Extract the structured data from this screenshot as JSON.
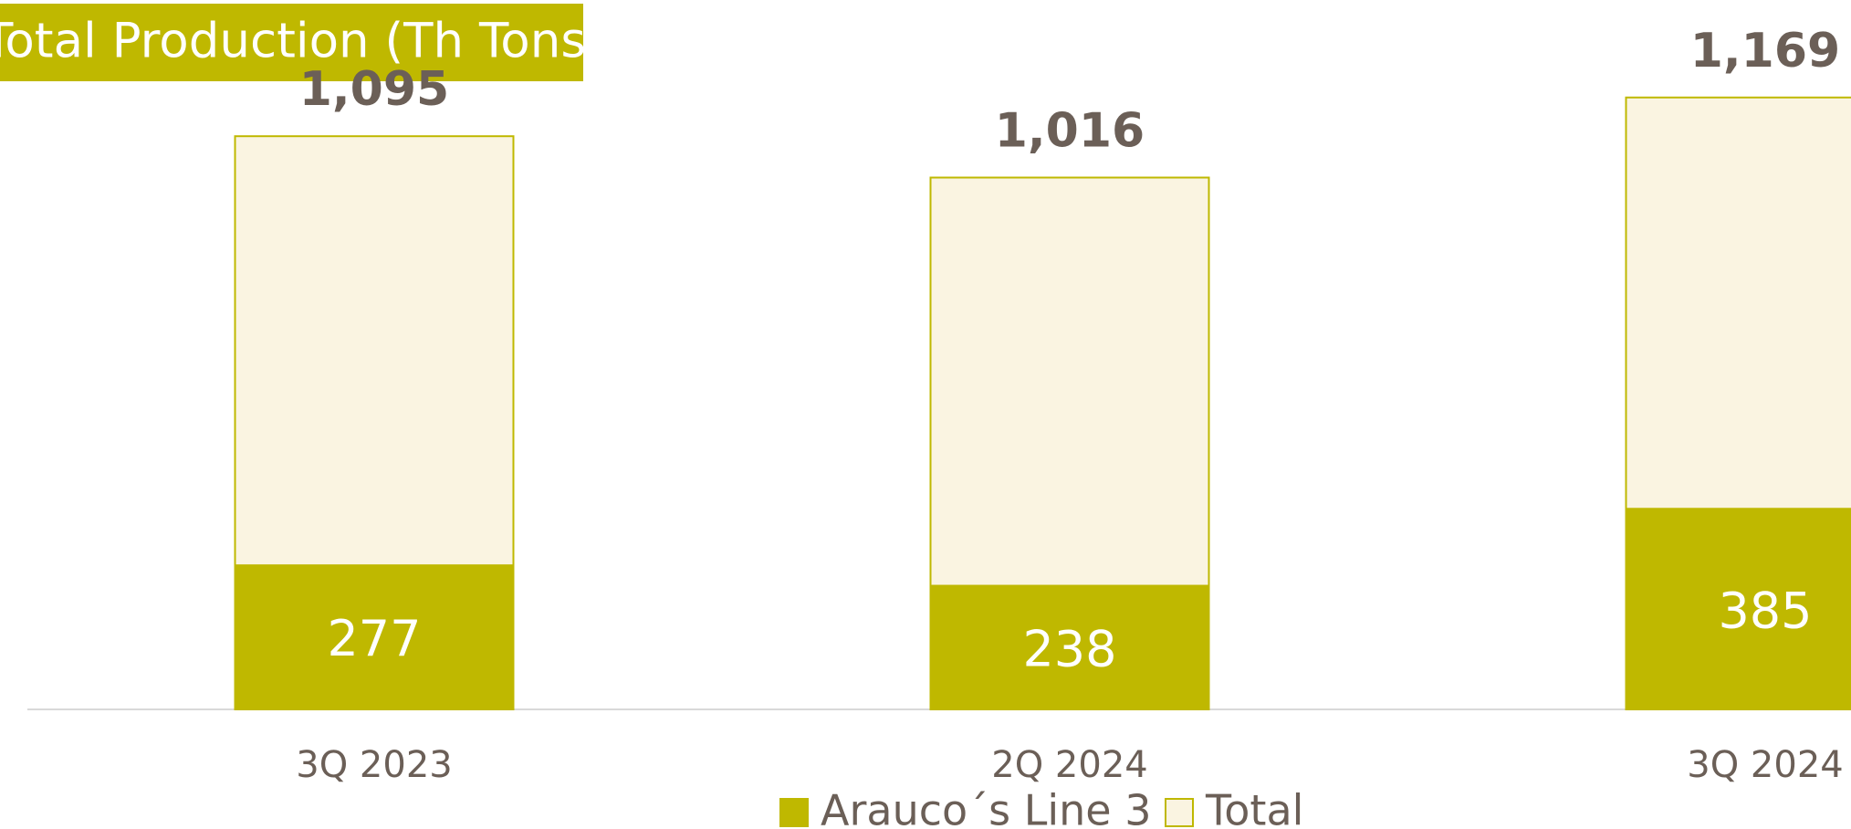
{
  "chart_data": {
    "type": "bar",
    "title": "Total Production (Th Tons)",
    "categories": [
      "3Q 2023",
      "2Q 2024",
      "3Q 2024"
    ],
    "series": [
      {
        "name": "Arauco´s Line 3",
        "color": "#bfb800",
        "values": [
          277,
          238,
          385
        ]
      },
      {
        "name": "Total",
        "color": "#faf4e1",
        "values": [
          1095,
          1016,
          1169
        ],
        "value_labels": [
          "1,095",
          "1,016",
          "1,169"
        ]
      }
    ],
    "ylim": [
      0,
      1200
    ]
  }
}
